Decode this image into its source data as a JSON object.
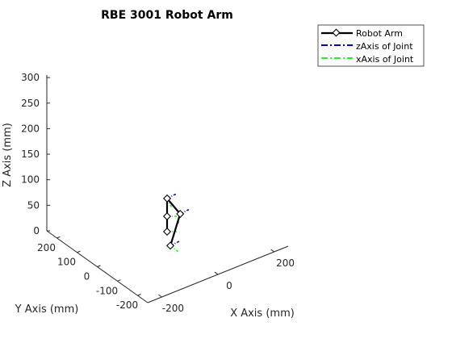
{
  "chart_data": {
    "type": "line",
    "title": "RBE 3001 Robot Arm",
    "xlabel": "X Axis (mm)",
    "ylabel": "Y Axis (mm)",
    "zlabel": "Z Axis (mm)",
    "xlim": [
      -250,
      250
    ],
    "ylim": [
      -250,
      250
    ],
    "zlim": [
      0,
      300
    ],
    "xticks": [
      -200,
      0,
      200
    ],
    "yticks": [
      -200,
      -100,
      0,
      100,
      200
    ],
    "zticks": [
      0,
      50,
      100,
      150,
      200,
      250,
      300
    ],
    "grid": false,
    "view": "3d",
    "legend_placement": "top-right",
    "colors": {
      "arm": "#000000",
      "z_axis": "#0000cc",
      "x_axis": "#22ee22",
      "axes": "#262626"
    },
    "series": [
      {
        "name": "Robot Arm",
        "style": "solid, diamond markers",
        "joints": [
          {
            "x": 0,
            "y": 0,
            "z": 0
          },
          {
            "x": 0,
            "y": 0,
            "z": 30
          },
          {
            "x": 0,
            "y": 0,
            "z": 65
          },
          {
            "x": 40,
            "y": 0,
            "z": 25
          },
          {
            "x": 10,
            "y": 0,
            "z": -30
          }
        ]
      },
      {
        "name": "zAxis of Joint",
        "style": "dash-dot"
      },
      {
        "name": "xAxis of Joint",
        "style": "dash-dot"
      }
    ]
  }
}
